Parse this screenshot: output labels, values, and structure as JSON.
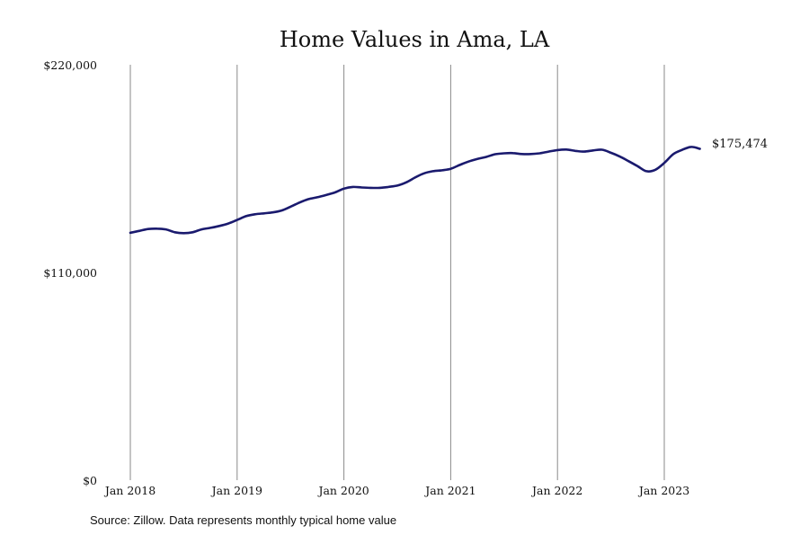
{
  "chart_data": {
    "type": "line",
    "title": "Home Values in Ama, LA",
    "xlabel": "",
    "ylabel": "",
    "ylim": [
      0,
      220000
    ],
    "y_ticks": [
      {
        "value": 0,
        "label": "$0"
      },
      {
        "value": 110000,
        "label": "$110,000"
      },
      {
        "value": 220000,
        "label": "$220,000"
      }
    ],
    "x_ticks": [
      {
        "date": "2018-01",
        "label": "Jan 2018"
      },
      {
        "date": "2019-01",
        "label": "Jan 2019"
      },
      {
        "date": "2020-01",
        "label": "Jan 2020"
      },
      {
        "date": "2021-01",
        "label": "Jan 2021"
      },
      {
        "date": "2022-01",
        "label": "Jan 2022"
      },
      {
        "date": "2023-01",
        "label": "Jan 2023"
      }
    ],
    "grid": "vertical",
    "color": "#1a1a6e",
    "series": [
      {
        "x": [
          "2018-01",
          "2018-02",
          "2018-03",
          "2018-04",
          "2018-05",
          "2018-06",
          "2018-07",
          "2018-08",
          "2018-09",
          "2018-10",
          "2018-11",
          "2018-12",
          "2019-01",
          "2019-02",
          "2019-03",
          "2019-04",
          "2019-05",
          "2019-06",
          "2019-07",
          "2019-08",
          "2019-09",
          "2019-10",
          "2019-11",
          "2019-12",
          "2020-01",
          "2020-02",
          "2020-03",
          "2020-04",
          "2020-05",
          "2020-06",
          "2020-07",
          "2020-08",
          "2020-09",
          "2020-10",
          "2020-11",
          "2020-12",
          "2021-01",
          "2021-02",
          "2021-03",
          "2021-04",
          "2021-05",
          "2021-06",
          "2021-07",
          "2021-08",
          "2021-09",
          "2021-10",
          "2021-11",
          "2021-12",
          "2022-01",
          "2022-02",
          "2022-03",
          "2022-04",
          "2022-05",
          "2022-06",
          "2022-07",
          "2022-08",
          "2022-09",
          "2022-10",
          "2022-11",
          "2022-12",
          "2023-01",
          "2023-02",
          "2023-03",
          "2023-04",
          "2023-05"
        ],
        "values": [
          131000,
          132000,
          133000,
          133200,
          132800,
          131300,
          130800,
          131300,
          132800,
          133600,
          134600,
          135900,
          137800,
          139800,
          140800,
          141300,
          141800,
          142800,
          144800,
          147000,
          148800,
          149800,
          151000,
          152400,
          154400,
          155300,
          155000,
          154800,
          154800,
          155300,
          156000,
          157700,
          160300,
          162500,
          163600,
          164100,
          164900,
          166900,
          168700,
          170100,
          171200,
          172600,
          173100,
          173200,
          172700,
          172700,
          173100,
          174000,
          174800,
          175100,
          174400,
          174000,
          174600,
          175000,
          173400,
          171400,
          168900,
          166300,
          163600,
          164400,
          168000,
          172600,
          174900,
          176500,
          175474
        ]
      }
    ],
    "end_label": "$175,474",
    "source": "Source: Zillow. Data represents monthly typical home value"
  }
}
